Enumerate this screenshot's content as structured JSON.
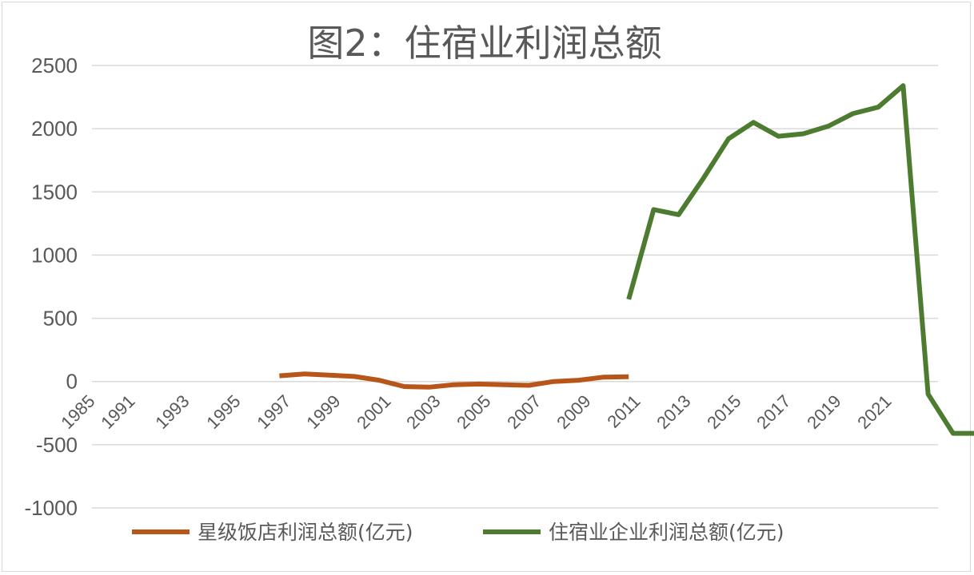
{
  "chart_data": {
    "type": "line",
    "title": "图2：住宿业利润总额",
    "xlabel": "",
    "ylabel": "",
    "ylim": [
      -1000,
      2500
    ],
    "yticks": [
      "2500",
      "2000",
      "1500",
      "1000",
      "500",
      "0",
      "-500",
      "-1000"
    ],
    "ytick_values": [
      2500,
      2000,
      1500,
      1000,
      500,
      0,
      -500,
      -1000
    ],
    "xticks": [
      "1985",
      "1991",
      "1993",
      "1995",
      "1997",
      "1999",
      "2001",
      "2003",
      "2005",
      "2007",
      "2009",
      "2011",
      "2013",
      "2015",
      "2017",
      "2019",
      "2021"
    ],
    "grid": true,
    "legend_position": "bottom",
    "series": [
      {
        "name": "星级饭店利润总额(亿元)",
        "color": "#b8561a",
        "x": [
          1993,
          1994,
          1995,
          1996,
          1997,
          1998,
          1999,
          2000,
          2001,
          2002,
          2003,
          2004,
          2005,
          2006,
          2007
        ],
        "values": [
          45,
          60,
          50,
          40,
          10,
          -40,
          -45,
          -25,
          -20,
          -25,
          -30,
          0,
          10,
          35,
          38
        ]
      },
      {
        "name": "住宿业企业利润总额(亿元)",
        "color": "#4d7b2f",
        "x": [
          2007,
          2008,
          2009,
          2010,
          2011,
          2012,
          2013,
          2014,
          2015,
          2016,
          2017,
          2018,
          2019,
          2020,
          2021
        ],
        "values": [
          650,
          1360,
          1320,
          1610,
          1920,
          2050,
          1940,
          1960,
          2020,
          2120,
          2170,
          2340,
          -100,
          -410,
          -410
        ]
      }
    ]
  }
}
